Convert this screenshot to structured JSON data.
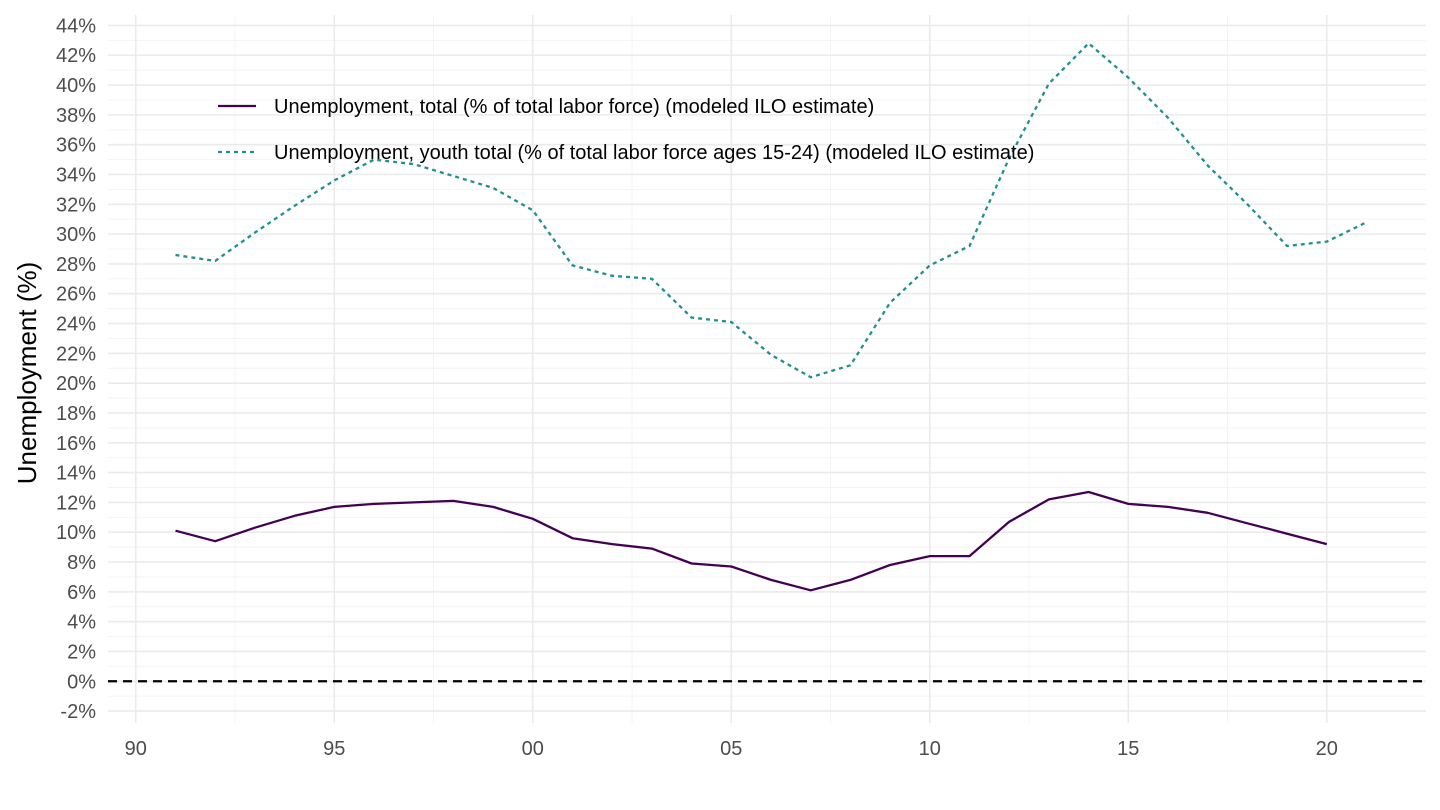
{
  "chart_data": {
    "type": "line",
    "title": "",
    "xlabel": "",
    "ylabel": "Unemployment (%)",
    "x_axis": {
      "range": [
        1989.3,
        2022.5
      ],
      "ticks": [
        1990,
        1995,
        2000,
        2005,
        2010,
        2015,
        2020
      ],
      "tick_labels": [
        "90",
        "95",
        "00",
        "05",
        "10",
        "15",
        "20"
      ]
    },
    "y_axis": {
      "range": [
        -2.8,
        44.7
      ],
      "ticks": [
        -2,
        0,
        2,
        4,
        6,
        8,
        10,
        12,
        14,
        16,
        18,
        20,
        22,
        24,
        26,
        28,
        30,
        32,
        34,
        36,
        38,
        40,
        42,
        44
      ],
      "tick_labels": [
        "-2%",
        "0%",
        "2%",
        "4%",
        "6%",
        "8%",
        "10%",
        "12%",
        "14%",
        "16%",
        "18%",
        "20%",
        "22%",
        "24%",
        "26%",
        "28%",
        "30%",
        "32%",
        "34%",
        "36%",
        "38%",
        "40%",
        "42%",
        "44%"
      ],
      "scale": "linear"
    },
    "grid": true,
    "legend": {
      "placement": "top-left inside"
    },
    "reference_line": {
      "y": 0,
      "style": "dashed",
      "color": "#000000"
    },
    "series": [
      {
        "name": "Unemployment, total (% of total labor force) (modeled ILO estimate)",
        "color": "#440154",
        "style": "solid",
        "x": [
          1991,
          1992,
          1993,
          1994,
          1995,
          1996,
          1997,
          1998,
          1999,
          2000,
          2001,
          2002,
          2003,
          2004,
          2005,
          2006,
          2007,
          2008,
          2009,
          2010,
          2011,
          2012,
          2013,
          2014,
          2015,
          2016,
          2017,
          2018,
          2019,
          2020
        ],
        "values": [
          10.1,
          9.4,
          10.3,
          11.1,
          11.7,
          11.9,
          12.0,
          12.1,
          11.7,
          10.9,
          9.6,
          9.2,
          8.9,
          7.9,
          7.7,
          6.8,
          6.1,
          6.8,
          7.8,
          8.4,
          8.4,
          10.7,
          12.2,
          12.7,
          11.9,
          11.7,
          11.3,
          10.6,
          9.9,
          9.2
        ]
      },
      {
        "name": "Unemployment, youth total (% of total labor force ages 15-24) (modeled ILO estimate)",
        "color": "#21908c",
        "style": "dotted",
        "x": [
          1991,
          1992,
          1993,
          1994,
          1995,
          1996,
          1997,
          1998,
          1999,
          2000,
          2001,
          2002,
          2003,
          2004,
          2005,
          2006,
          2007,
          2008,
          2009,
          2010,
          2011,
          2012,
          2013,
          2014,
          2015,
          2016,
          2017,
          2018,
          2019,
          2020,
          2021
        ],
        "values": [
          28.6,
          28.2,
          30.1,
          31.9,
          33.6,
          35.0,
          34.7,
          33.9,
          33.1,
          31.6,
          27.9,
          27.2,
          27.0,
          24.4,
          24.1,
          21.9,
          20.4,
          21.2,
          25.4,
          27.9,
          29.2,
          35.1,
          40.1,
          42.8,
          40.5,
          37.8,
          34.6,
          32.0,
          29.2,
          29.5,
          30.8
        ]
      }
    ]
  }
}
